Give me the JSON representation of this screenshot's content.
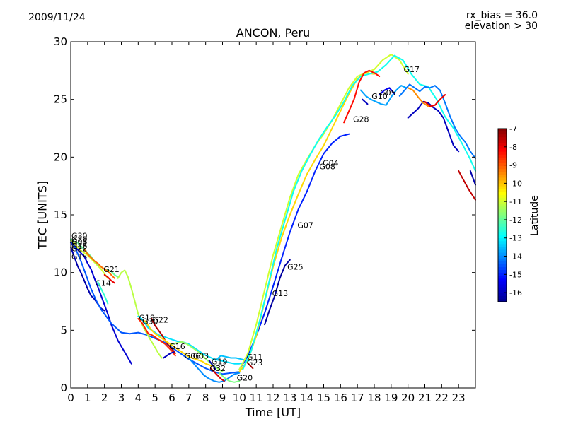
{
  "chart_data": {
    "type": "line",
    "title": "ANCON, Peru",
    "date": "2009/11/24",
    "info_line1": "rx_bias = 36.0",
    "info_line2": "elevation > 30",
    "xlabel": "Time [UT]",
    "ylabel": "TEC [UNITS]",
    "xlim": [
      0,
      24
    ],
    "ylim": [
      0,
      30
    ],
    "xticks": [
      "0",
      "1",
      "2",
      "3",
      "4",
      "5",
      "6",
      "7",
      "8",
      "9",
      "10",
      "11",
      "12",
      "13",
      "14",
      "15",
      "16",
      "17",
      "18",
      "19",
      "20",
      "21",
      "22",
      "23"
    ],
    "yticks": [
      "0",
      "5",
      "10",
      "15",
      "20",
      "25",
      "30"
    ],
    "colorbar": {
      "label": "Latitude",
      "min": -16.5,
      "max": -7,
      "ticks": [
        "-7",
        "-8",
        "-9",
        "-10",
        "-11",
        "-12",
        "-13",
        "-14",
        "-15",
        "-16"
      ],
      "colors": [
        "#00008f",
        "#0000ff",
        "#007fff",
        "#00ffff",
        "#7fff7f",
        "#ffff00",
        "#ff7f00",
        "#ff0000",
        "#800000"
      ]
    },
    "satellite_labels": [
      {
        "name": "G30",
        "x": 0.0,
        "y": 13.2
      },
      {
        "name": "G29",
        "x": 0.0,
        "y": 12.9
      },
      {
        "name": "G31",
        "x": 0.0,
        "y": 12.6
      },
      {
        "name": "G22",
        "x": 0.0,
        "y": 12.1
      },
      {
        "name": "G08",
        "x": 0.0,
        "y": 12.7
      },
      {
        "name": "G16",
        "x": 0.0,
        "y": 12.3
      },
      {
        "name": "G15",
        "x": 0.0,
        "y": 11.4
      },
      {
        "name": "G21",
        "x": 1.9,
        "y": 10.3
      },
      {
        "name": "G14",
        "x": 1.4,
        "y": 9.1
      },
      {
        "name": "G18",
        "x": 4.0,
        "y": 6.1
      },
      {
        "name": "G30",
        "x": 4.2,
        "y": 5.8
      },
      {
        "name": "G22",
        "x": 4.8,
        "y": 5.9
      },
      {
        "name": "G16",
        "x": 5.8,
        "y": 3.6
      },
      {
        "name": "G06",
        "x": 6.7,
        "y": 2.8
      },
      {
        "name": "G03",
        "x": 7.2,
        "y": 2.8
      },
      {
        "name": "G19",
        "x": 8.3,
        "y": 2.3
      },
      {
        "name": "G32",
        "x": 8.2,
        "y": 1.7
      },
      {
        "name": "G20",
        "x": 9.8,
        "y": 0.9
      },
      {
        "name": "G11",
        "x": 10.4,
        "y": 2.7
      },
      {
        "name": "G23",
        "x": 10.4,
        "y": 2.2
      },
      {
        "name": "G13",
        "x": 11.9,
        "y": 8.2
      },
      {
        "name": "G25",
        "x": 12.8,
        "y": 10.5
      },
      {
        "name": "G07",
        "x": 13.4,
        "y": 14.1
      },
      {
        "name": "G04",
        "x": 14.9,
        "y": 19.5
      },
      {
        "name": "G08",
        "x": 14.7,
        "y": 19.2
      },
      {
        "name": "G28",
        "x": 16.7,
        "y": 23.3
      },
      {
        "name": "G10",
        "x": 17.8,
        "y": 25.3
      },
      {
        "name": "G05",
        "x": 18.3,
        "y": 25.6
      },
      {
        "name": "G17",
        "x": 19.7,
        "y": 27.6
      }
    ],
    "series": [
      {
        "name": "trace-a",
        "lat": -16.2,
        "x": [
          0.0,
          0.2,
          0.4,
          0.6,
          0.8,
          1.0,
          1.2,
          1.4,
          1.6,
          1.8,
          2.0
        ],
        "y": [
          12.2,
          11.4,
          10.6,
          10.0,
          9.3,
          8.6,
          8.0,
          7.7,
          7.3,
          6.9,
          6.7
        ]
      },
      {
        "name": "trace-b",
        "lat": -15.8,
        "x": [
          0.0,
          0.2,
          0.4,
          0.6,
          0.8,
          1.0,
          1.2,
          1.4,
          1.6,
          1.8,
          2.0,
          2.2,
          2.4,
          2.6,
          2.8,
          3.0,
          3.2,
          3.4,
          3.6
        ],
        "y": [
          12.6,
          12.3,
          12.0,
          11.7,
          11.4,
          10.8,
          10.3,
          9.5,
          8.8,
          8.0,
          7.2,
          6.4,
          5.5,
          4.8,
          4.1,
          3.6,
          3.1,
          2.6,
          2.1
        ]
      },
      {
        "name": "trace-c",
        "lat": -14.5,
        "x": [
          0.0,
          0.3,
          0.6,
          0.9,
          1.2,
          1.5,
          1.8,
          2.1,
          2.4,
          2.7,
          3.0,
          3.5,
          4.0,
          4.5,
          5.0,
          5.5,
          6.0,
          6.5,
          7.0,
          7.5,
          8.0,
          8.5,
          9.0,
          9.5,
          10.0
        ],
        "y": [
          12.8,
          12.0,
          11.0,
          9.8,
          8.6,
          7.6,
          6.8,
          6.2,
          5.6,
          5.2,
          4.8,
          4.7,
          4.8,
          4.6,
          4.3,
          4.0,
          3.5,
          3.0,
          2.5,
          2.1,
          1.7,
          1.4,
          1.2,
          1.3,
          1.4
        ]
      },
      {
        "name": "trace-d",
        "lat": -11.0,
        "x": [
          0.0,
          0.2,
          0.4,
          0.6,
          0.8,
          1.0,
          1.2,
          1.4,
          1.6,
          1.8,
          2.0,
          2.2
        ],
        "y": [
          12.8,
          12.6,
          12.2,
          11.9,
          11.7,
          11.5,
          11.2,
          10.9,
          10.6,
          10.3,
          9.9,
          9.5
        ]
      },
      {
        "name": "trace-e",
        "lat": -12.0,
        "x": [
          0.0,
          0.2,
          0.4,
          0.6,
          0.8,
          1.0,
          1.2,
          1.4,
          1.6,
          1.8,
          2.0,
          2.2,
          2.4,
          2.6,
          2.8
        ],
        "y": [
          12.9,
          12.7,
          12.6,
          12.3,
          12.0,
          11.7,
          11.4,
          11.0,
          10.7,
          10.5,
          10.3,
          10.2,
          10.1,
          9.8,
          9.6
        ]
      },
      {
        "name": "trace-f",
        "lat": -9.2,
        "x": [
          0.8,
          1.0,
          1.2,
          1.4,
          1.6,
          1.8,
          2.0,
          2.2,
          2.4,
          2.6
        ],
        "y": [
          12.0,
          11.6,
          11.3,
          11.0,
          10.8,
          10.5,
          10.3,
          10.1,
          9.8,
          9.5
        ]
      },
      {
        "name": "trace-g",
        "lat": -8.0,
        "x": [
          2.0,
          2.2,
          2.4,
          2.6
        ],
        "y": [
          9.8,
          9.6,
          9.3,
          9.1
        ]
      },
      {
        "name": "trace-h",
        "lat": -12.5,
        "x": [
          1.6,
          1.8,
          2.0,
          2.2
        ],
        "y": [
          9.2,
          8.6,
          8.0,
          7.3
        ]
      },
      {
        "name": "trace-i",
        "lat": -11.2,
        "x": [
          2.8,
          3.0,
          3.2,
          3.4,
          3.6,
          3.8,
          4.0,
          4.2,
          4.4,
          4.6,
          4.8,
          5.0,
          5.2,
          5.4
        ],
        "y": [
          9.5,
          10.0,
          10.2,
          9.6,
          8.6,
          7.5,
          6.4,
          5.6,
          5.0,
          4.5,
          4.0,
          3.5,
          3.0,
          2.6
        ]
      },
      {
        "name": "trace-j",
        "lat": -13.2,
        "x": [
          4.0,
          4.2,
          4.4,
          4.6,
          4.8,
          5.0,
          5.2,
          5.4,
          5.6,
          5.8,
          6.0,
          6.2,
          6.4,
          6.6,
          6.8,
          7.0,
          7.3,
          7.6,
          7.9,
          8.2,
          8.5,
          8.8,
          9.1,
          9.4,
          9.7,
          10.0,
          10.3,
          10.6
        ],
        "y": [
          6.2,
          6.0,
          5.6,
          5.2,
          5.0,
          4.8,
          4.6,
          4.5,
          4.4,
          4.3,
          4.2,
          4.1,
          4.0,
          4.0,
          3.9,
          3.8,
          3.5,
          3.2,
          2.9,
          2.7,
          2.5,
          2.4,
          2.3,
          2.2,
          2.1,
          2.1,
          2.2,
          2.4
        ]
      },
      {
        "name": "trace-k",
        "lat": -8.5,
        "x": [
          4.0,
          4.2,
          4.4,
          4.6,
          4.8,
          5.0,
          5.2,
          5.4,
          5.6,
          5.8,
          6.0,
          6.2
        ],
        "y": [
          6.0,
          5.7,
          5.2,
          4.7,
          4.6,
          4.4,
          4.2,
          4.0,
          3.8,
          3.5,
          3.2,
          2.8
        ]
      },
      {
        "name": "trace-l",
        "lat": -7.5,
        "x": [
          4.8,
          5.0,
          5.2,
          5.4,
          5.6,
          5.8,
          6.0,
          6.2
        ],
        "y": [
          6.0,
          5.4,
          5.0,
          4.6,
          4.1,
          3.7,
          3.4,
          3.0
        ]
      },
      {
        "name": "trace-m",
        "lat": -10.2,
        "x": [
          4.4,
          4.6,
          4.8,
          5.0,
          5.2,
          5.4,
          5.6,
          5.8,
          6.0,
          6.2,
          6.4,
          6.6,
          6.8,
          7.0,
          7.2,
          7.4,
          7.6,
          7.8,
          8.0,
          8.2,
          8.4
        ],
        "y": [
          5.8,
          5.4,
          5.0,
          4.7,
          4.5,
          4.3,
          4.1,
          3.9,
          3.7,
          3.5,
          3.3,
          3.1,
          2.9,
          2.7,
          2.6,
          2.5,
          2.4,
          2.3,
          2.1,
          2.0,
          1.9
        ]
      },
      {
        "name": "trace-n",
        "lat": -16.0,
        "x": [
          5.5,
          5.7,
          5.9,
          6.1
        ],
        "y": [
          2.6,
          2.8,
          3.0,
          3.1
        ]
      },
      {
        "name": "trace-o",
        "lat": -11.5,
        "x": [
          6.0,
          6.3,
          6.6,
          6.9,
          7.2,
          7.5,
          7.8,
          8.1,
          8.4,
          8.7,
          9.0
        ],
        "y": [
          3.8,
          3.9,
          4.0,
          3.8,
          3.5,
          3.2,
          2.8,
          2.4,
          2.0,
          1.7,
          1.4
        ]
      },
      {
        "name": "trace-p",
        "lat": -14.0,
        "x": [
          7.0,
          7.3,
          7.6,
          7.9,
          8.2,
          8.5,
          8.8,
          9.1,
          9.4,
          9.7,
          10.0
        ],
        "y": [
          2.6,
          2.1,
          1.6,
          1.1,
          0.8,
          0.6,
          0.5,
          0.6,
          0.9,
          1.2,
          1.3
        ]
      },
      {
        "name": "trace-q",
        "lat": -7.8,
        "x": [
          8.3,
          8.5,
          8.7,
          8.9,
          9.1
        ],
        "y": [
          1.7,
          1.4,
          1.1,
          0.8,
          0.6
        ]
      },
      {
        "name": "trace-r",
        "lat": -16.1,
        "x": [
          8.2,
          8.4,
          8.6
        ],
        "y": [
          2.4,
          2.0,
          1.6
        ]
      },
      {
        "name": "trace-s",
        "lat": -13.5,
        "x": [
          8.6,
          8.9,
          9.2,
          9.5,
          9.8,
          10.1,
          10.4
        ],
        "y": [
          2.4,
          2.8,
          2.7,
          2.6,
          2.6,
          2.5,
          2.4
        ]
      },
      {
        "name": "trace-t",
        "lat": -11.8,
        "x": [
          8.8,
          9.1,
          9.4,
          9.7,
          10.0
        ],
        "y": [
          1.3,
          0.9,
          0.6,
          0.5,
          0.6
        ]
      },
      {
        "name": "trace-u",
        "lat": -7.3,
        "x": [
          10.4,
          10.6,
          10.8
        ],
        "y": [
          2.3,
          2.0,
          1.7
        ]
      },
      {
        "name": "trace-v",
        "lat": -15.0,
        "x": [
          10.0,
          10.5,
          11.0,
          11.5,
          12.0,
          12.5,
          13.0,
          13.5,
          14.0,
          14.5,
          15.0,
          15.5,
          16.0,
          16.5
        ],
        "y": [
          1.6,
          2.8,
          4.5,
          6.5,
          8.8,
          11.2,
          13.5,
          15.5,
          17.0,
          18.8,
          20.3,
          21.2,
          21.8,
          22.0
        ]
      },
      {
        "name": "trace-w",
        "lat": -16.3,
        "x": [
          11.5,
          11.8,
          12.1,
          12.4,
          12.7,
          13.0
        ],
        "y": [
          5.5,
          6.8,
          8.0,
          9.5,
          10.6,
          11.1
        ]
      },
      {
        "name": "trace-x",
        "lat": -11.0,
        "x": [
          10.0,
          10.5,
          11.0,
          11.5,
          12.0,
          12.5,
          13.0,
          13.5,
          14.0,
          14.5,
          15.0,
          15.5,
          16.0,
          16.5,
          17.0,
          17.5,
          18.0,
          18.5,
          19.0,
          19.5,
          20.0
        ],
        "y": [
          1.6,
          3.0,
          5.5,
          8.5,
          11.5,
          14.0,
          16.5,
          18.5,
          19.8,
          21.0,
          22.0,
          23.2,
          24.6,
          26.0,
          27.0,
          27.3,
          27.6,
          28.4,
          28.9,
          28.4,
          27.2
        ]
      },
      {
        "name": "trace-y",
        "lat": -10.2,
        "x": [
          10.0,
          10.5,
          11.0,
          11.5,
          12.0,
          12.5,
          13.0,
          13.5,
          14.0,
          14.5,
          15.0,
          15.5,
          16.0,
          16.5,
          17.0,
          17.5,
          18.0
        ],
        "y": [
          1.4,
          2.4,
          4.5,
          7.5,
          10.5,
          13.0,
          15.0,
          16.8,
          18.5,
          19.8,
          21.0,
          22.5,
          24.0,
          25.5,
          26.8,
          27.3,
          27.2
        ]
      },
      {
        "name": "trace-z",
        "lat": -12.8,
        "x": [
          10.2,
          10.7,
          11.2,
          11.7,
          12.2,
          12.7,
          13.2,
          13.7,
          14.2,
          14.7,
          15.2,
          15.7,
          16.2,
          16.7,
          17.2,
          17.7,
          18.2,
          18.7,
          19.2,
          19.7,
          20.2,
          20.7,
          21.2,
          21.7,
          22.2,
          22.7,
          23.2,
          23.7,
          24.0
        ],
        "y": [
          1.6,
          3.2,
          5.8,
          8.8,
          12.0,
          14.5,
          17.0,
          18.8,
          20.2,
          21.5,
          22.6,
          23.6,
          24.8,
          26.2,
          27.0,
          27.2,
          27.4,
          28.0,
          28.8,
          28.4,
          27.2,
          26.3,
          26.1,
          25.0,
          23.5,
          22.5,
          21.2,
          19.8,
          18.8
        ]
      },
      {
        "name": "trace-aa",
        "lat": -13.8,
        "x": [
          17.2,
          17.5,
          17.8,
          18.1,
          18.4,
          18.7,
          19.0,
          19.3,
          19.6,
          19.9
        ],
        "y": [
          25.8,
          25.3,
          25.0,
          24.8,
          24.6,
          24.5,
          25.2,
          25.8,
          26.2,
          26.0
        ]
      },
      {
        "name": "trace-ab",
        "lat": -15.5,
        "x": [
          18.3,
          18.6,
          18.9,
          19.2
        ],
        "y": [
          25.4,
          25.8,
          26.0,
          25.5
        ]
      },
      {
        "name": "trace-ac",
        "lat": -16.0,
        "x": [
          17.3,
          17.6
        ],
        "y": [
          25.0,
          24.6
        ]
      },
      {
        "name": "trace-ad",
        "lat": -14.2,
        "x": [
          19.5,
          19.8,
          20.1,
          20.4,
          20.7,
          21.0,
          21.3,
          21.6,
          21.9,
          22.2,
          22.5,
          22.8,
          23.1,
          23.4,
          23.7,
          24.0
        ],
        "y": [
          25.3,
          25.8,
          26.3,
          26.0,
          25.7,
          26.1,
          26.0,
          26.2,
          25.8,
          24.7,
          23.5,
          22.5,
          21.8,
          21.3,
          20.5,
          19.9
        ]
      },
      {
        "name": "trace-ae",
        "lat": -16.0,
        "x": [
          20.0,
          20.3,
          20.6,
          20.9,
          21.2,
          21.5,
          21.8,
          22.1,
          22.4,
          22.7,
          23.0
        ],
        "y": [
          23.4,
          23.8,
          24.2,
          24.8,
          24.7,
          24.3,
          24.0,
          23.4,
          22.2,
          21.0,
          20.5
        ]
      },
      {
        "name": "trace-af",
        "lat": -8.0,
        "x": [
          21.0,
          21.3,
          21.6,
          21.9,
          22.2
        ],
        "y": [
          24.8,
          24.4,
          24.5,
          25.0,
          25.4
        ]
      },
      {
        "name": "trace-ag",
        "lat": -9.5,
        "x": [
          20.0,
          20.3,
          20.6,
          20.9,
          21.2
        ],
        "y": [
          26.0,
          25.8,
          25.2,
          24.7,
          24.4
        ]
      },
      {
        "name": "trace-ah",
        "lat": -7.6,
        "x": [
          23.0,
          23.3,
          23.6,
          24.0
        ],
        "y": [
          18.8,
          18.0,
          17.2,
          16.3
        ]
      },
      {
        "name": "trace-ai",
        "lat": -16.2,
        "x": [
          23.7,
          23.85,
          24.0
        ],
        "y": [
          18.8,
          18.2,
          17.6
        ]
      },
      {
        "name": "trace-aj",
        "lat": -8.3,
        "x": [
          16.2,
          16.5,
          16.8,
          17.1,
          17.4,
          17.7,
          18.0,
          18.3
        ],
        "y": [
          23.0,
          24.0,
          25.0,
          26.5,
          27.3,
          27.5,
          27.3,
          27.0
        ]
      }
    ]
  }
}
